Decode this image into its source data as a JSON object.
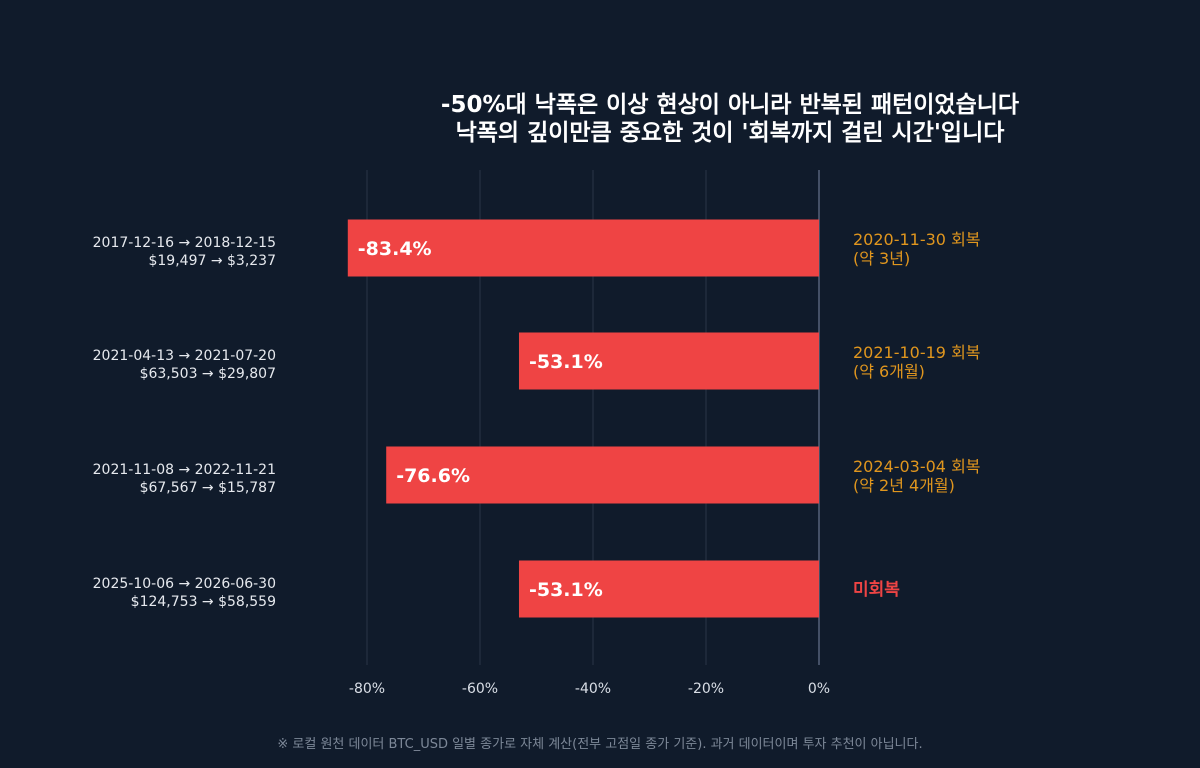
{
  "chart_data": {
    "type": "bar",
    "orientation": "horizontal",
    "title_line1": "-50%대 낙폭은 이상 현상이 아니라 반복된 패턴이었습니다",
    "title_line2": "낙폭의 깊이만큼 중요한 것이 '회복까지 걸린 시간'입니다",
    "xlim": [
      -84,
      0
    ],
    "xticks": [
      -80,
      -60,
      -40,
      -20,
      0
    ],
    "xtick_labels": [
      "-80%",
      "-60%",
      "-40%",
      "-20%",
      "0%"
    ],
    "grid": true,
    "bar_color": "#ef4444",
    "recovered_color": "#e0961e",
    "unrecovered_color": "#ef4444",
    "rows": [
      {
        "period": "2017-12-16 → 2018-12-15",
        "prices": "$19,497 → $3,237",
        "value": -83.4,
        "value_label": "-83.4%",
        "recovery": "2020-11-30 회복",
        "recovery_note": "(약 3년)",
        "recovered": true
      },
      {
        "period": "2021-04-13 → 2021-07-20",
        "prices": "$63,503 → $29,807",
        "value": -53.1,
        "value_label": "-53.1%",
        "recovery": "2021-10-19 회복",
        "recovery_note": "(약 6개월)",
        "recovered": true
      },
      {
        "period": "2021-11-08 → 2022-11-21",
        "prices": "$67,567 → $15,787",
        "value": -76.6,
        "value_label": "-76.6%",
        "recovery": "2024-03-04 회복",
        "recovery_note": "(약 2년 4개월)",
        "recovered": true
      },
      {
        "period": "2025-10-06 → 2026-06-30",
        "prices": "$124,753 → $58,559",
        "value": -53.1,
        "value_label": "-53.1%",
        "recovery": "미회복",
        "recovery_note": "",
        "recovered": false
      }
    ]
  },
  "footnote": "※ 로컬 원천 데이터 BTC_USD 일별 종가로 자체 계산(전부 고점일 종가 기준). 과거 데이터이며 투자 추천이 아닙니다."
}
